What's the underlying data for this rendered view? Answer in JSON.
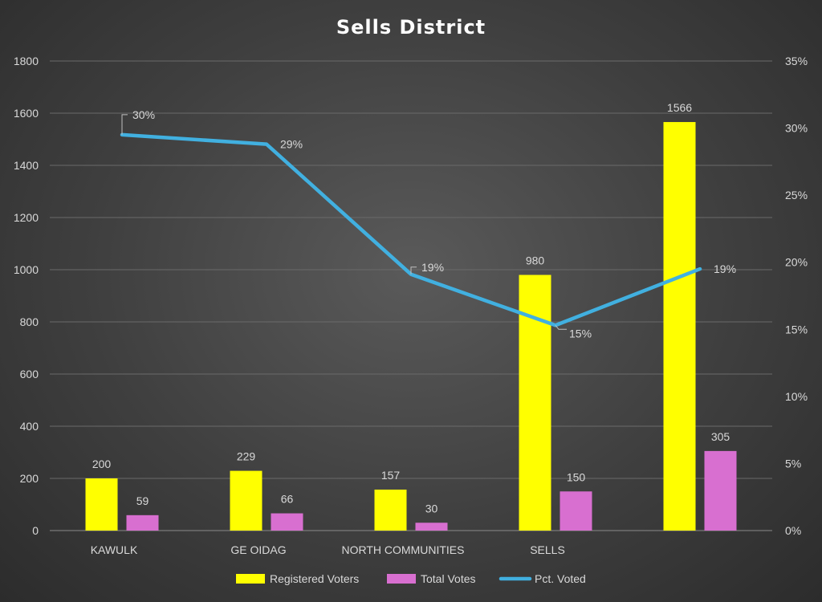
{
  "chart_data": {
    "type": "bar",
    "title": "Sells District",
    "categories": [
      "KAWULK",
      "GE OIDAG",
      "NORTH COMMUNITIES",
      "SELLS",
      ""
    ],
    "series": [
      {
        "name": "Registered Voters",
        "kind": "bar",
        "axis": "left",
        "color": "#ffff00",
        "values": [
          200,
          229,
          157,
          980,
          1566
        ]
      },
      {
        "name": "Total Votes",
        "kind": "bar",
        "axis": "left",
        "color": "#d86fd0",
        "values": [
          59,
          66,
          30,
          150,
          305
        ]
      },
      {
        "name": "Pct. Voted",
        "kind": "line",
        "axis": "right",
        "color": "#41b0e0",
        "values": [
          0.295,
          0.288,
          0.191,
          0.153,
          0.195
        ],
        "labels": [
          "30%",
          "29%",
          "19%",
          "15%",
          "19%"
        ]
      }
    ],
    "ylim_left": [
      0,
      1800
    ],
    "yticks_left": [
      "0",
      "200",
      "400",
      "600",
      "800",
      "1000",
      "1200",
      "1400",
      "1600",
      "1800"
    ],
    "ylim_right": [
      0,
      0.35
    ],
    "yticks_right": [
      "0%",
      "5%",
      "10%",
      "15%",
      "20%",
      "25%",
      "30%",
      "35%"
    ],
    "grid": true,
    "legend_position": "bottom"
  }
}
